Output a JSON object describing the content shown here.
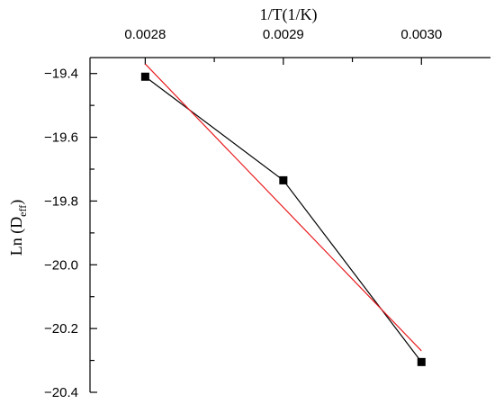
{
  "chart_data": {
    "type": "line",
    "xlabel": "1/T(1/K)",
    "ylabel_main": "Ln (D",
    "ylabel_sub": "eff",
    "ylabel_close": ")",
    "x_axis_position": "top",
    "xlim": [
      0.00276,
      0.00305
    ],
    "ylim": [
      -20.4,
      -19.35
    ],
    "x_ticks": [
      {
        "value": 0.0028,
        "label": "0.0028"
      },
      {
        "value": 0.0029,
        "label": "0.0029"
      },
      {
        "value": 0.003,
        "label": "0.0030"
      }
    ],
    "x_minor_ticks": [
      0.00285,
      0.00295
    ],
    "y_ticks": [
      {
        "value": -19.4,
        "label": "−19.4"
      },
      {
        "value": -19.6,
        "label": "−19.6"
      },
      {
        "value": -19.8,
        "label": "−19.8"
      },
      {
        "value": -20.0,
        "label": "−20.0"
      },
      {
        "value": -20.2,
        "label": "−20.2"
      },
      {
        "value": -20.4,
        "label": "−20.4"
      }
    ],
    "y_minor_ticks": [
      -19.5,
      -19.7,
      -19.9,
      -20.1,
      -20.3
    ],
    "series": [
      {
        "kind": "data",
        "color": "#000000",
        "marker": "square",
        "x": [
          0.0028,
          0.0029,
          0.003
        ],
        "y": [
          -19.41,
          -19.735,
          -20.305
        ]
      },
      {
        "kind": "fit",
        "color": "#e8191d",
        "marker": "none",
        "x": [
          0.0028,
          0.003
        ],
        "y": [
          -19.37,
          -20.27
        ]
      }
    ]
  }
}
